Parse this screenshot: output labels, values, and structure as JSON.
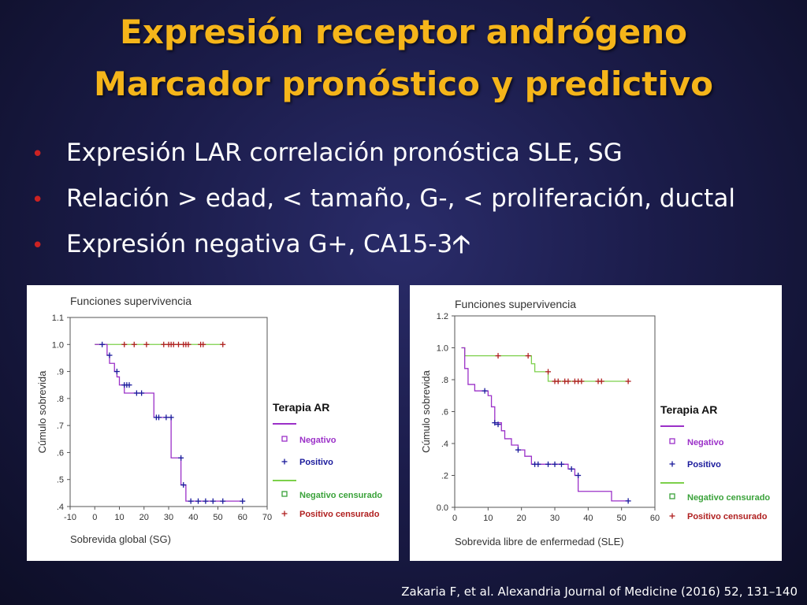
{
  "slide": {
    "title_line1": "Expresión receptor andrógeno",
    "title_line2": "Marcador pronóstico y predictivo",
    "bullets": [
      "Expresión LAR correlación pronóstica SLE, SG",
      "Relación > edad, < tamaño, G-, < proliferación, ductal",
      "Expresión negativa G+, CA15-3"
    ],
    "bullet_arrow": "🡡",
    "citation": "Zakaria F, et al. Alexandria Journal of Medicine (2016) 52, 131–140"
  },
  "colors": {
    "title": "#f5b51a",
    "bullet_dot": "#cc2222",
    "negative": "#7cd04a",
    "positive": "#9b30c8",
    "positive_marker": "#1a1a9c",
    "negative_censored_marker": "#3aa23a",
    "positive_censored_marker": "#b02020"
  },
  "chart_data": [
    {
      "type": "line",
      "title": "Funciones supervivencia",
      "xlabel": "Sobrevida global (SG)",
      "ylabel": "Cúmulo sobrevida",
      "xlim": [
        -10,
        70
      ],
      "ylim": [
        0.4,
        1.1
      ],
      "xticks": [
        -10,
        0,
        10,
        20,
        30,
        40,
        50,
        60,
        70
      ],
      "xtick_labels": [
        "-10",
        "0",
        "10",
        "20",
        "30",
        "40",
        "50",
        "60",
        "70"
      ],
      "yticks": [
        0.4,
        0.5,
        0.6,
        0.7,
        0.8,
        0.9,
        1.0,
        1.1
      ],
      "ytick_labels": [
        ".4",
        ".5",
        ".6",
        ".7",
        ".8",
        ".9",
        "1.0",
        "1.1"
      ],
      "legend_title": "Terapia AR",
      "legend_entries": [
        "Negativo",
        "Positivo",
        "Negativo censurado",
        "Positivo censurado"
      ],
      "series": [
        {
          "name": "Negativo",
          "color": "#7cd04a",
          "x": [
            0,
            52
          ],
          "y": [
            1.0,
            1.0
          ],
          "censored_x": [
            12,
            16,
            21,
            28,
            30,
            31,
            32,
            34,
            36,
            37,
            38,
            43,
            44,
            52
          ],
          "censored_y": [
            1.0,
            1.0,
            1.0,
            1.0,
            1.0,
            1.0,
            1.0,
            1.0,
            1.0,
            1.0,
            1.0,
            1.0,
            1.0,
            1.0
          ]
        },
        {
          "name": "Positivo",
          "color": "#9b30c8",
          "x": [
            0,
            5,
            5,
            6,
            6,
            8,
            8,
            9,
            9,
            10,
            10,
            12,
            12,
            16,
            16,
            24,
            24,
            31,
            31,
            35,
            35,
            37,
            37,
            60
          ],
          "y": [
            1.0,
            1.0,
            0.96,
            0.96,
            0.93,
            0.93,
            0.9,
            0.9,
            0.88,
            0.88,
            0.85,
            0.85,
            0.82,
            0.82,
            0.82,
            0.82,
            0.73,
            0.73,
            0.58,
            0.58,
            0.48,
            0.48,
            0.42,
            0.42
          ],
          "censored_x": [
            3,
            6,
            9,
            12,
            13,
            14,
            17,
            19,
            25,
            26,
            29,
            31,
            35,
            36,
            39,
            42,
            45,
            48,
            52,
            60
          ],
          "censored_y": [
            1.0,
            0.96,
            0.9,
            0.85,
            0.85,
            0.85,
            0.82,
            0.82,
            0.73,
            0.73,
            0.73,
            0.73,
            0.58,
            0.48,
            0.42,
            0.42,
            0.42,
            0.42,
            0.42,
            0.42
          ]
        }
      ]
    },
    {
      "type": "line",
      "title": "Funciones supervivencia",
      "xlabel": "Sobrevida libre de enfermedad (SLE)",
      "ylabel": "Cúmulo sobrevida",
      "xlim": [
        0,
        60
      ],
      "ylim": [
        0.0,
        1.2
      ],
      "xticks": [
        0,
        10,
        20,
        30,
        40,
        50,
        60
      ],
      "xtick_labels": [
        "0",
        "10",
        "20",
        "30",
        "40",
        "50",
        "60"
      ],
      "yticks": [
        0.0,
        0.2,
        0.4,
        0.6,
        0.8,
        1.0,
        1.2
      ],
      "ytick_labels": [
        "0.0",
        ".2",
        ".4",
        ".6",
        ".8",
        "1.0",
        "1.2"
      ],
      "legend_title": "Terapia AR",
      "legend_entries": [
        "Negativo",
        "Positivo",
        "Negativo censurado",
        "Positivo censurado"
      ],
      "series": [
        {
          "name": "Negativo",
          "color": "#7cd04a",
          "x": [
            2,
            3,
            3,
            23,
            23,
            24,
            24,
            28,
            28,
            52
          ],
          "y": [
            1.0,
            1.0,
            0.95,
            0.95,
            0.9,
            0.9,
            0.85,
            0.85,
            0.79,
            0.79
          ],
          "censored_x": [
            13,
            22,
            28,
            30,
            31,
            33,
            34,
            36,
            37,
            38,
            43,
            44,
            52
          ],
          "censored_y": [
            0.95,
            0.95,
            0.85,
            0.79,
            0.79,
            0.79,
            0.79,
            0.79,
            0.79,
            0.79,
            0.79,
            0.79,
            0.79
          ]
        },
        {
          "name": "Positivo",
          "color": "#9b30c8",
          "x": [
            2,
            3,
            3,
            4,
            4,
            6,
            6,
            10,
            10,
            11,
            11,
            12,
            12,
            14,
            14,
            15,
            15,
            17,
            17,
            19,
            19,
            21,
            21,
            23,
            23,
            34,
            34,
            36,
            36,
            37,
            37,
            47,
            47,
            52
          ],
          "y": [
            1.0,
            1.0,
            0.87,
            0.87,
            0.77,
            0.77,
            0.73,
            0.73,
            0.7,
            0.7,
            0.63,
            0.63,
            0.53,
            0.53,
            0.48,
            0.48,
            0.43,
            0.43,
            0.39,
            0.39,
            0.36,
            0.36,
            0.32,
            0.32,
            0.27,
            0.27,
            0.24,
            0.24,
            0.2,
            0.2,
            0.1,
            0.1,
            0.04,
            0.04
          ],
          "censored_x": [
            9,
            12,
            13,
            19,
            24,
            25,
            28,
            30,
            32,
            35,
            37,
            52
          ],
          "censored_y": [
            0.73,
            0.53,
            0.52,
            0.36,
            0.27,
            0.27,
            0.27,
            0.27,
            0.27,
            0.24,
            0.2,
            0.04
          ]
        }
      ]
    }
  ]
}
